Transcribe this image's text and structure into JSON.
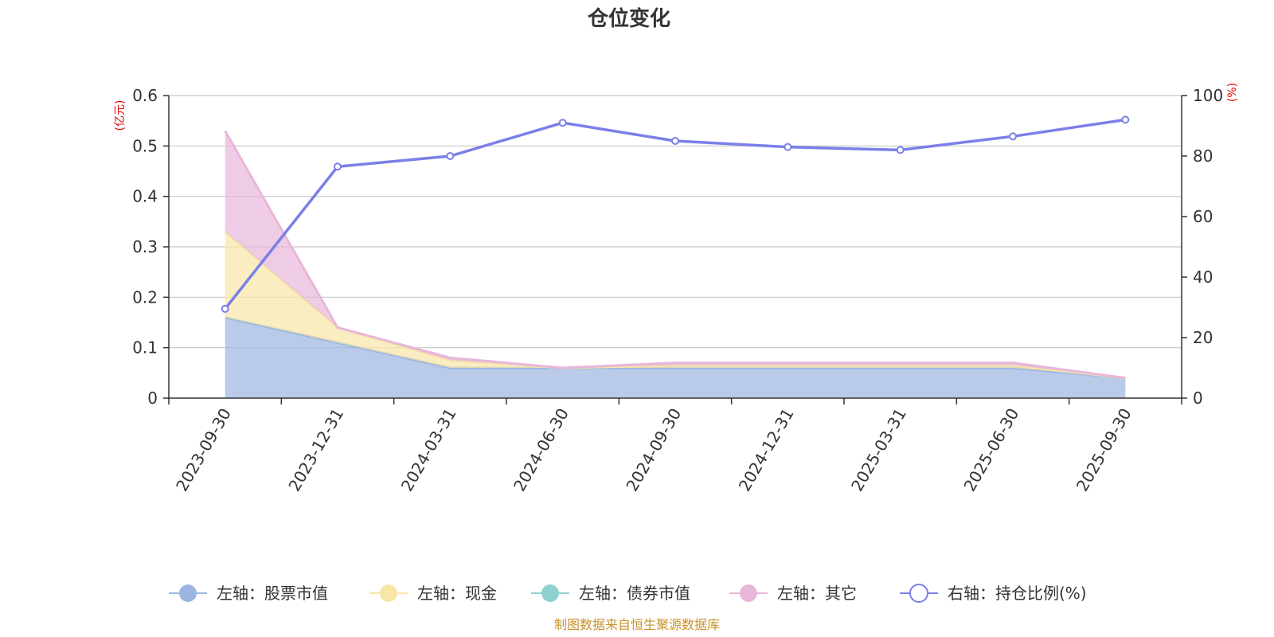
{
  "chart_data": {
    "type": "area",
    "title": "仓位变化",
    "left_unit": "(亿元)",
    "right_unit": "(%)",
    "source": "制图数据来自恒生聚源数据库",
    "categories": [
      "2023-09-30",
      "2023-12-31",
      "2024-03-31",
      "2024-06-30",
      "2024-09-30",
      "2024-12-31",
      "2025-03-31",
      "2025-06-30",
      "2025-09-30"
    ],
    "left_axis": {
      "min": 0,
      "max": 0.6,
      "ticks": [
        "0",
        "0.1",
        "0.2",
        "0.3",
        "0.4",
        "0.5",
        "0.6"
      ]
    },
    "right_axis": {
      "min": 0,
      "max": 100,
      "ticks": [
        "0",
        "20",
        "40",
        "60",
        "80",
        "100"
      ]
    },
    "grid": true,
    "legend_position": "bottom",
    "series": [
      {
        "name": "左轴：股票市值",
        "axis": "left",
        "stack": true,
        "color": "#9bb5e0",
        "values": [
          0.16,
          0.11,
          0.06,
          0.06,
          0.06,
          0.06,
          0.06,
          0.06,
          0.04
        ]
      },
      {
        "name": "左轴：现金",
        "axis": "left",
        "stack": true,
        "color": "#f7e6a6",
        "values": [
          0.17,
          0.03,
          0.015,
          0.0,
          0.005,
          0.005,
          0.005,
          0.005,
          0.0
        ]
      },
      {
        "name": "左轴：债券市值",
        "axis": "left",
        "stack": true,
        "color": "#8fd1d1",
        "values": [
          0,
          0,
          0,
          0,
          0,
          0,
          0,
          0,
          0
        ]
      },
      {
        "name": "左轴：其它",
        "axis": "left",
        "stack": true,
        "color": "#e8b6da",
        "values": [
          0.2,
          0.0,
          0.005,
          0.0,
          0.005,
          0.005,
          0.005,
          0.005,
          0.0
        ]
      },
      {
        "name": "右轴：持仓比例(%)",
        "axis": "right",
        "type": "line",
        "color": "#7b7fe8",
        "values": [
          29.5,
          76.5,
          80,
          91,
          85,
          83,
          82,
          86.5,
          92
        ]
      }
    ]
  }
}
